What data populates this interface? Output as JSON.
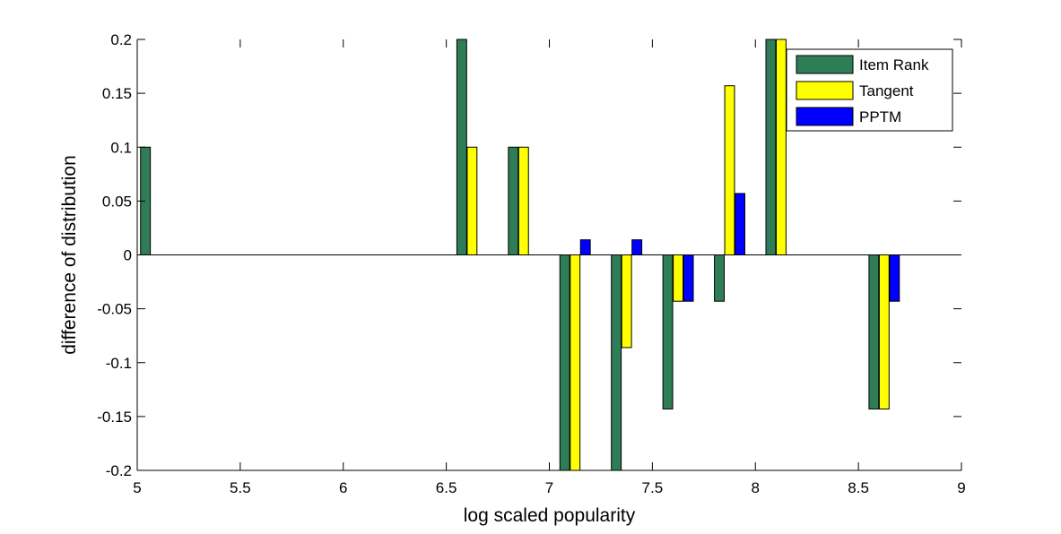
{
  "chart_data": {
    "type": "bar",
    "title": "",
    "xlabel": "log scaled popularity",
    "ylabel": "difference of distribution",
    "xlim": [
      5,
      9
    ],
    "ylim": [
      -0.2,
      0.2
    ],
    "xticks": [
      "5",
      "5.5",
      "6",
      "6.5",
      "7",
      "7.5",
      "8",
      "8.5",
      "9"
    ],
    "yticks": [
      "0.2",
      "0.15",
      "0.1",
      "0.05",
      "0",
      "-0.05",
      "-0.1",
      "-0.15",
      "-0.2"
    ],
    "xtick_values": [
      5,
      5.5,
      6,
      6.5,
      7,
      7.5,
      8,
      8.5,
      9
    ],
    "ytick_values": [
      0.2,
      0.15,
      0.1,
      0.05,
      0,
      -0.05,
      -0.1,
      -0.15,
      -0.2
    ],
    "bar_width": 0.0475,
    "grid": false,
    "legend_position": "top-right",
    "series": [
      {
        "name": "Item Rank",
        "color": "#2e7d57",
        "x": [
          5.04,
          6.575,
          6.825,
          7.075,
          7.325,
          7.575,
          7.825,
          8.075,
          8.575
        ],
        "values": [
          0.1,
          0.2,
          0.1,
          -0.2,
          -0.2,
          -0.143,
          -0.043,
          0.2,
          -0.143
        ]
      },
      {
        "name": "Tangent",
        "color": "#ffff00",
        "x": [
          6.625,
          6.875,
          7.125,
          7.375,
          7.625,
          7.875,
          8.125,
          8.625
        ],
        "values": [
          0.1,
          0.1,
          -0.2,
          -0.086,
          -0.043,
          0.157,
          0.2,
          -0.143
        ]
      },
      {
        "name": "PPTM",
        "color": "#0000ff",
        "x": [
          7.175,
          7.425,
          7.675,
          7.925,
          8.675
        ],
        "values": [
          0.014,
          0.014,
          -0.043,
          0.057,
          -0.043
        ]
      }
    ]
  }
}
